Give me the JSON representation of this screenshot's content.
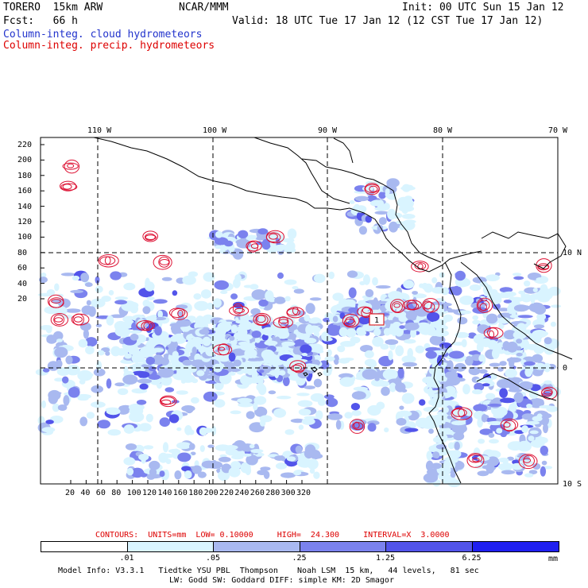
{
  "header": {
    "model": "TORERO  15km ARW",
    "org": "NCAR/MMM",
    "init": "Init: 00 UTC Sun 15 Jan 12",
    "fcst": "Fcst:   66 h",
    "valid": "Valid: 18 UTC Tue 17 Jan 12 (12 CST Tue 17 Jan 12)",
    "legend_cloud": "Column-integ. cloud hydrometeors",
    "legend_precip": "Column-integ. precip. hydrometeors"
  },
  "map": {
    "lon_labels": [
      "110 W",
      "100 W",
      "90 W",
      "80 W",
      "70 W"
    ],
    "lat_labels": [
      "10 N",
      "0",
      "10 S"
    ],
    "x_ticks": [
      "20",
      "40",
      "60",
      "80",
      "100",
      "120",
      "140",
      "160",
      "180",
      "200",
      "220",
      "240",
      "260",
      "280",
      "300",
      "320"
    ],
    "y_ticks": [
      "220",
      "200",
      "180",
      "160",
      "140",
      "120",
      "100",
      "80",
      "60",
      "40",
      "20"
    ],
    "box_label": "1"
  },
  "contour_info": "CONTOURS:  UNITS=mm  LOW= 0.10000     HIGH=  24.300     INTERVAL=X  3.0000",
  "colorbar": {
    "labels": [
      ".01",
      ".05",
      ".25",
      "1.25",
      "6.25"
    ],
    "unit": "mm",
    "colors": [
      "#ffffff",
      "#d9f4ff",
      "#a9b9f0",
      "#7b82ee",
      "#5254ea",
      "#1f1ff0"
    ]
  },
  "footer": {
    "line1": "Model Info: V3.3.1   Tiedtke YSU PBL  Thompson    Noah LSM  15 km,   44 levels,   81 sec",
    "line2": "LW: Godd SW: Goddard DIFF: simple KM: 2D Smagor"
  }
}
